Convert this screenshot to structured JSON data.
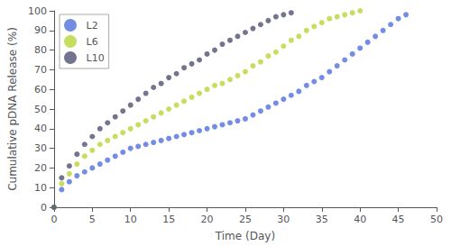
{
  "chart_data": {
    "type": "scatter",
    "xlabel": "Time (Day)",
    "ylabel": "Cumulative pDNA Release (%)",
    "xlim": [
      0,
      50
    ],
    "ylim": [
      0,
      100
    ],
    "xticks": [
      0,
      5,
      10,
      15,
      20,
      25,
      30,
      35,
      40,
      45,
      50
    ],
    "yticks": [
      0,
      10,
      20,
      30,
      40,
      50,
      60,
      70,
      80,
      90,
      100
    ],
    "grid": false,
    "legend": "upper left",
    "marker": "circle",
    "series": [
      {
        "name": "L2",
        "x": [
          0,
          1,
          2,
          3,
          4,
          5,
          6,
          7,
          8,
          9,
          10,
          11,
          12,
          13,
          14,
          15,
          16,
          17,
          18,
          19,
          20,
          21,
          22,
          23,
          24,
          25,
          26,
          27,
          28,
          29,
          30,
          31,
          32,
          33,
          34,
          35,
          36,
          37,
          38,
          39,
          40,
          41,
          42,
          43,
          44,
          45,
          46
        ],
        "values": [
          0,
          9,
          13,
          16,
          18,
          20,
          22,
          24,
          26,
          28,
          30,
          31,
          32,
          33,
          34,
          35,
          36,
          37,
          38,
          39,
          40,
          41,
          42,
          43,
          44,
          45,
          47,
          49,
          51,
          53,
          55,
          57,
          59,
          62,
          64,
          66,
          69,
          72,
          75,
          78,
          81,
          84,
          87,
          90,
          93,
          96,
          98
        ]
      },
      {
        "name": "L6",
        "x": [
          0,
          1,
          2,
          3,
          4,
          5,
          6,
          7,
          8,
          9,
          10,
          11,
          12,
          13,
          14,
          15,
          16,
          17,
          18,
          19,
          20,
          21,
          22,
          23,
          24,
          25,
          26,
          27,
          28,
          29,
          30,
          31,
          32,
          33,
          34,
          35,
          36,
          37,
          38,
          39,
          40
        ],
        "values": [
          0,
          12,
          17,
          22,
          26,
          29,
          32,
          34,
          36,
          38,
          40,
          42,
          44,
          46,
          48,
          50,
          52,
          54,
          56,
          58,
          60,
          62,
          63,
          65,
          67,
          69,
          72,
          74,
          77,
          79,
          82,
          85,
          87,
          90,
          92,
          94,
          96,
          97,
          98,
          99,
          100
        ]
      },
      {
        "name": "L10",
        "x": [
          0,
          1,
          2,
          3,
          4,
          5,
          6,
          7,
          8,
          9,
          10,
          11,
          12,
          13,
          14,
          15,
          16,
          17,
          18,
          19,
          20,
          21,
          22,
          23,
          24,
          25,
          26,
          27,
          28,
          29,
          30,
          31
        ],
        "values": [
          0,
          15,
          21,
          27,
          32,
          36,
          40,
          43,
          46,
          49,
          52,
          55,
          58,
          61,
          63,
          66,
          68,
          71,
          73,
          75,
          78,
          80,
          83,
          85,
          87,
          89,
          91,
          93,
          95,
          97,
          98,
          99
        ]
      }
    ]
  }
}
